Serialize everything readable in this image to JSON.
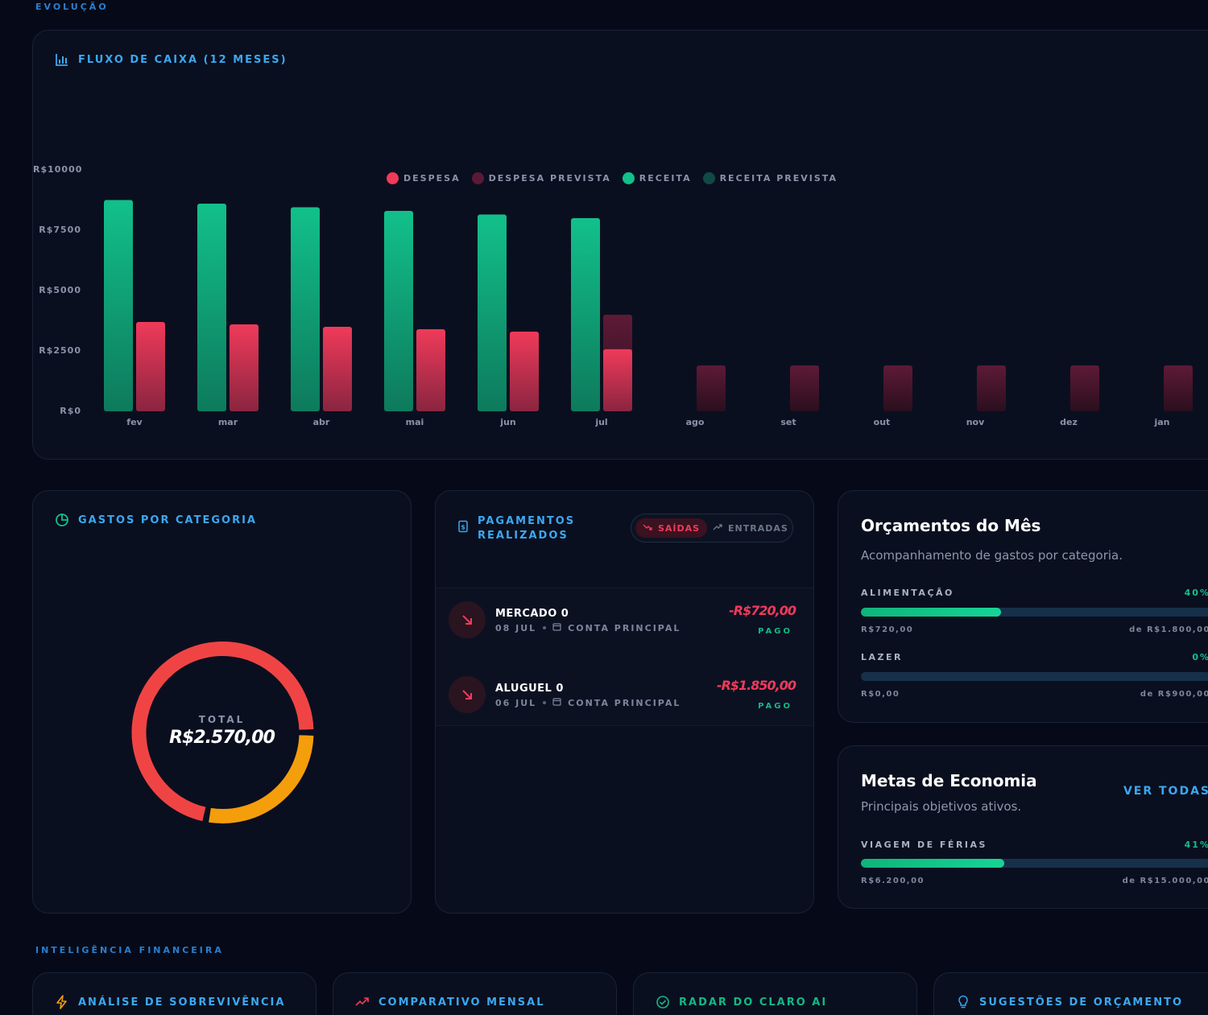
{
  "sections": {
    "evolucao": "EVOLUÇÃO",
    "inteligencia": "INTELIGÊNCIA FINANCEIRA"
  },
  "cashflow": {
    "title": "FLUXO DE CAIXA (12 MESES)",
    "icon": "bar-chart-icon"
  },
  "chart_data": {
    "type": "bar",
    "title": "FLUXO DE CAIXA (12 MESES)",
    "categories": [
      "fev",
      "mar",
      "abr",
      "mai",
      "jun",
      "jul",
      "ago",
      "set",
      "out",
      "nov",
      "dez",
      "jan"
    ],
    "series": [
      {
        "name": "RECEITA",
        "color": "#12c08a",
        "values": [
          8750,
          8600,
          8450,
          8300,
          8150,
          8000,
          null,
          null,
          null,
          null,
          null,
          null
        ]
      },
      {
        "name": "DESPESA",
        "color": "#f03a5a",
        "values": [
          3700,
          3600,
          3500,
          3400,
          3300,
          2570,
          null,
          null,
          null,
          null,
          null,
          null
        ]
      },
      {
        "name": "DESPESA PREVISTA",
        "color": "#5a1a35",
        "values": [
          null,
          null,
          null,
          null,
          null,
          4000,
          1900,
          1900,
          1900,
          1900,
          1900,
          1900
        ]
      },
      {
        "name": "RECEITA PREVISTA",
        "color": "#0f4a45",
        "values": [
          null,
          null,
          null,
          null,
          null,
          null,
          null,
          null,
          null,
          null,
          null,
          null
        ]
      }
    ],
    "y_ticks": [
      "R$10000",
      "R$7500",
      "R$5000",
      "R$2500",
      "R$0"
    ],
    "y_tick_values": [
      10000,
      7500,
      5000,
      2500,
      0
    ],
    "ylim": [
      0,
      10000
    ],
    "legend_position": "top-center",
    "grid": false
  },
  "categories_card": {
    "title": "GASTOS POR CATEGORIA",
    "icon": "pie-chart-icon",
    "total_label": "TOTAL",
    "total_value": "R$2.570,00",
    "slices": [
      {
        "value": 1850,
        "color": "#f04444"
      },
      {
        "value": 720,
        "color": "#f59e0b"
      }
    ]
  },
  "payments": {
    "title_line1": "PAGAMENTOS",
    "title_line2": "REALIZADOS",
    "icon": "receipt-icon",
    "toggle": {
      "saidas": "SAÍDAS",
      "entradas": "ENTRADAS"
    },
    "items": [
      {
        "name": "MERCADO 0",
        "date": "08 JUL",
        "account": "CONTA PRINCIPAL",
        "amount": "-R$720,00",
        "status": "PAGO"
      },
      {
        "name": "ALUGUEL 0",
        "date": "06 JUL",
        "account": "CONTA PRINCIPAL",
        "amount": "-R$1.850,00",
        "status": "PAGO"
      }
    ]
  },
  "budgets": {
    "title": "Orçamentos do Mês",
    "subtitle": "Acompanhamento de gastos por categoria.",
    "items": [
      {
        "name": "ALIMENTAÇÃO",
        "pct": "40%",
        "progress": 0.4,
        "spent": "R$720,00",
        "limit": "de R$1.800,00"
      },
      {
        "name": "LAZER",
        "pct": "0%",
        "progress": 0,
        "spent": "R$0,00",
        "limit": "de R$900,00"
      }
    ]
  },
  "goals": {
    "title": "Metas de Economia",
    "subtitle": "Principais objetivos ativos.",
    "view_all": "VER TODAS",
    "items": [
      {
        "name": "VIAGEM DE FÉRIAS",
        "pct": "41%",
        "progress": 0.41,
        "saved": "R$6.200,00",
        "target": "de R$15.000,00"
      }
    ]
  },
  "intel_cards": [
    {
      "title": "ANÁLISE DE SOBREVIVÊNCIA",
      "icon": "bolt-icon",
      "color": "#3aa8f0"
    },
    {
      "title": "COMPARATIVO MENSAL",
      "icon": "trend-up-icon",
      "color": "#3aa8f0"
    },
    {
      "title": "RADAR DO CLARO AI",
      "icon": "check-circle-icon",
      "color": "#12b885"
    },
    {
      "title": "SUGESTÕES DE ORÇAMENTO",
      "icon": "lightbulb-icon",
      "color": "#3aa8f0"
    }
  ]
}
